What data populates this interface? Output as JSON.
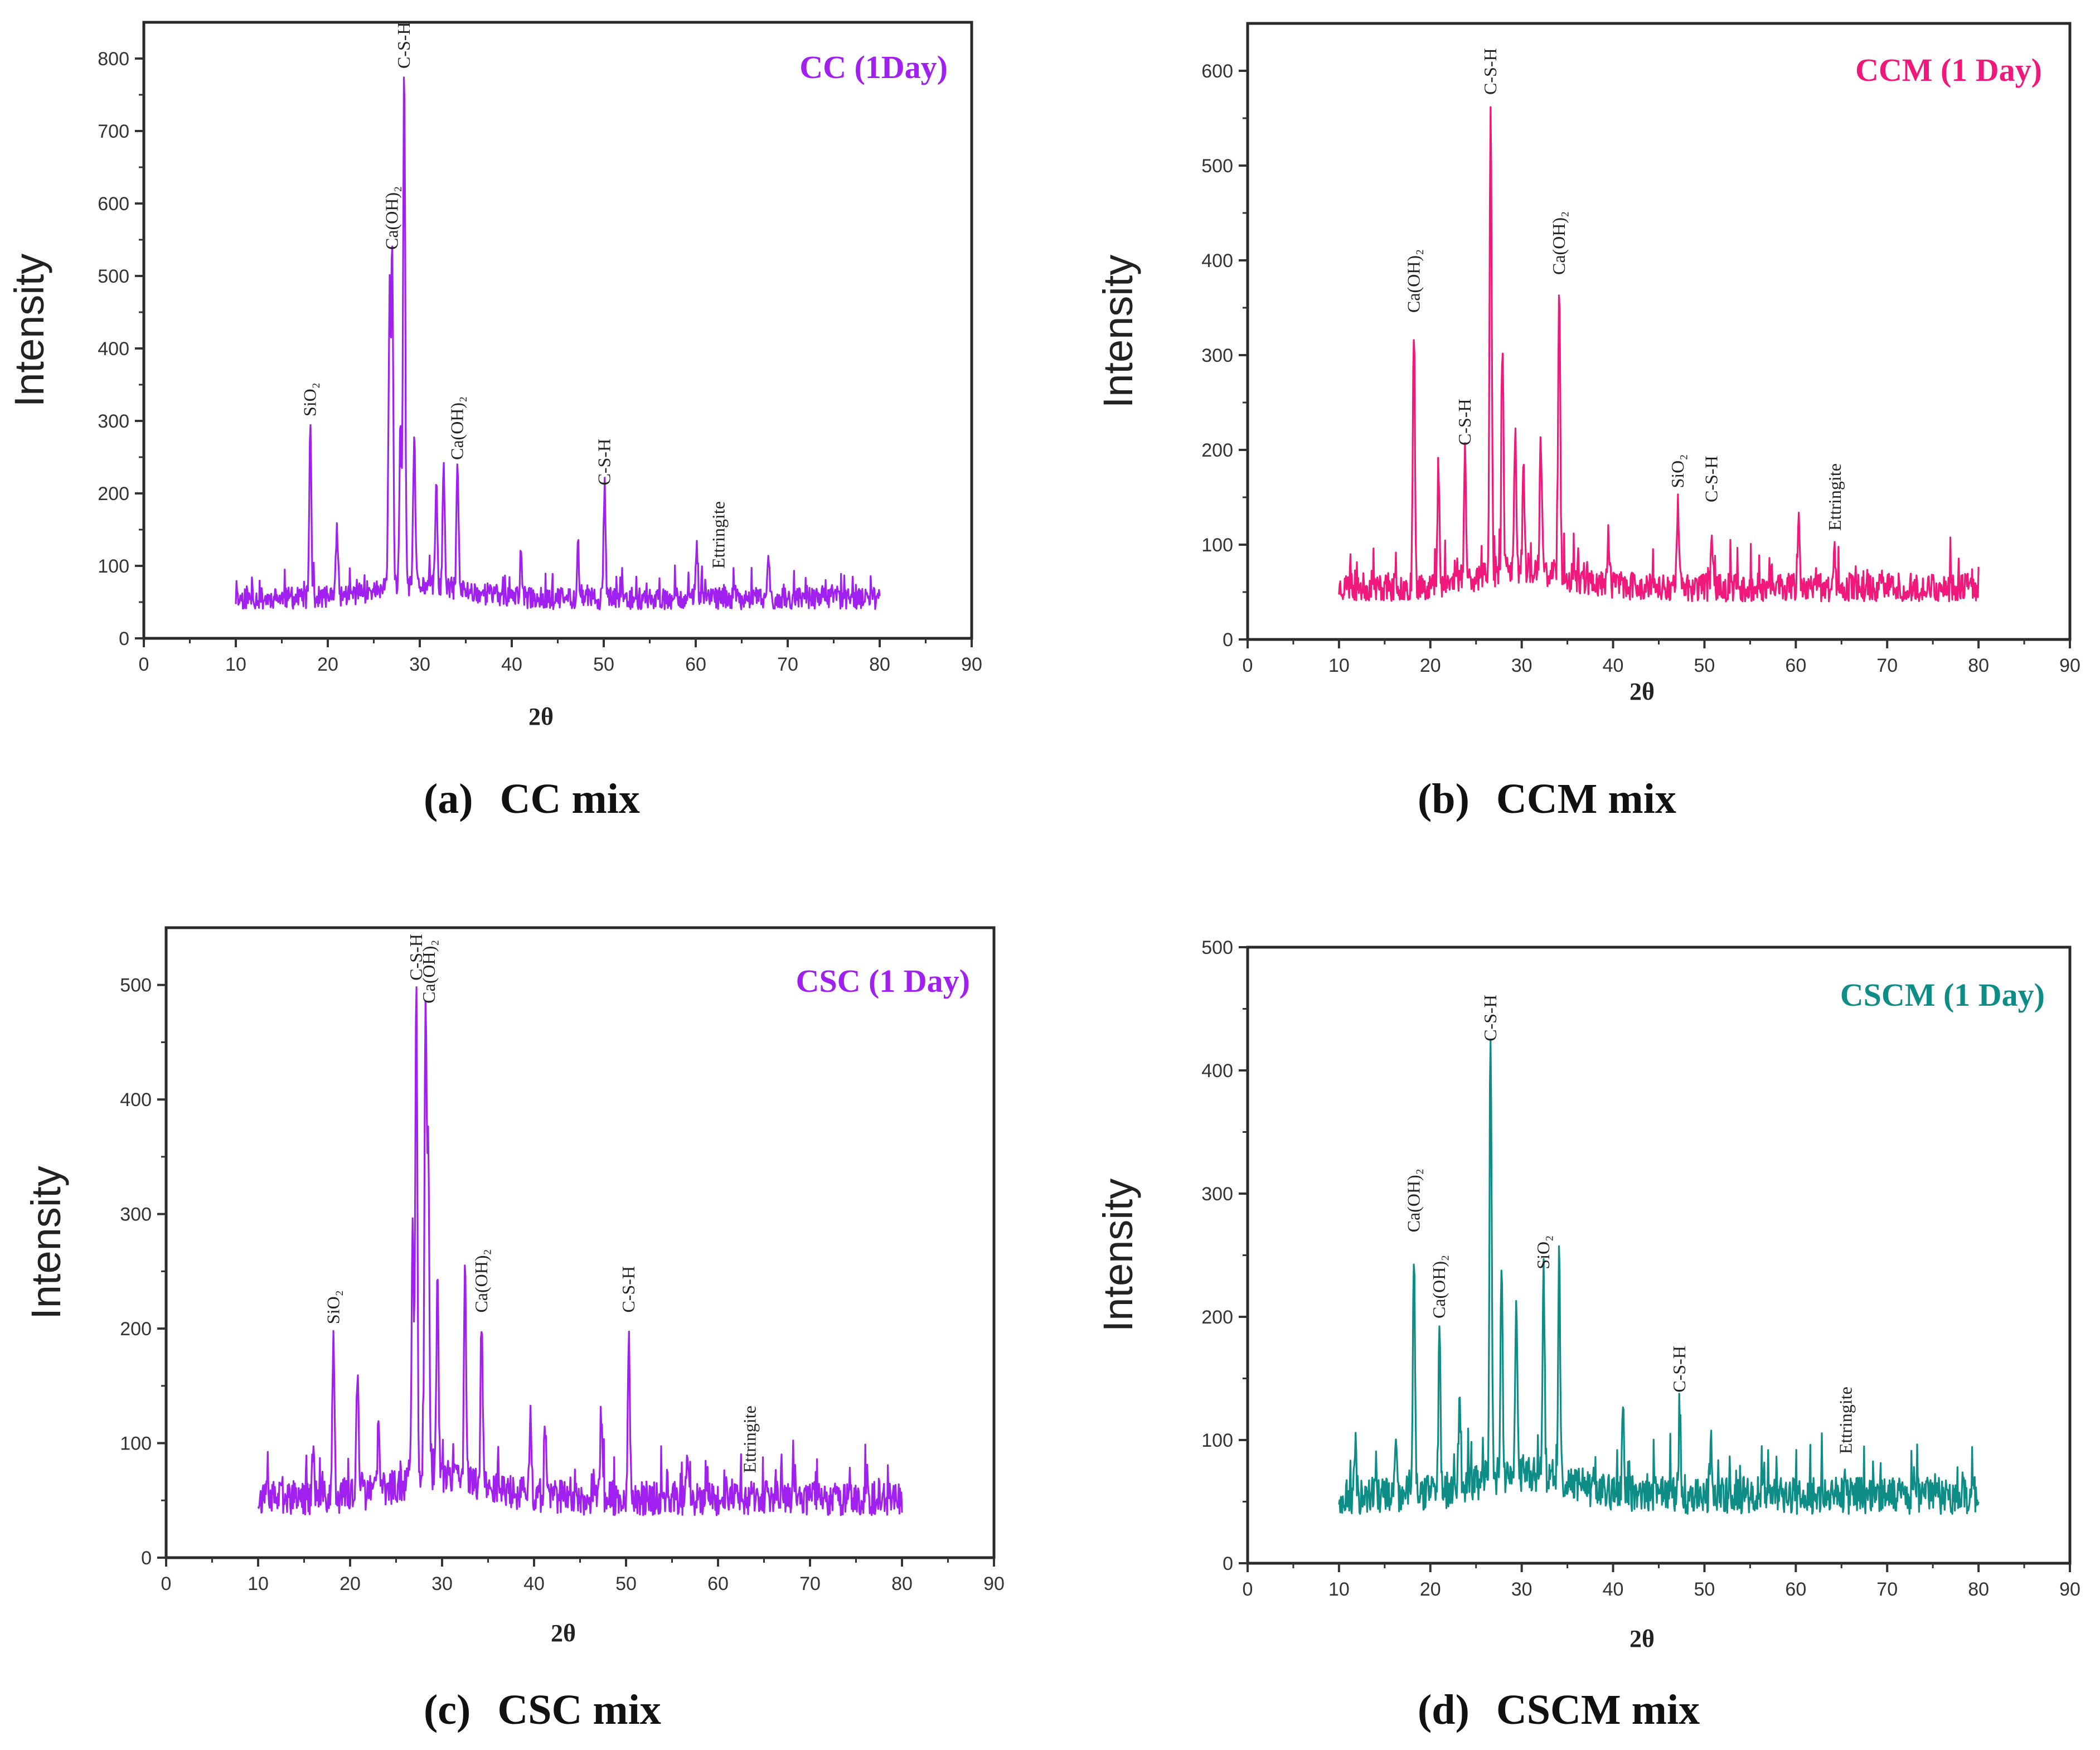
{
  "panels": [
    {
      "caption_letter": "(a)",
      "caption_text": "CC mix",
      "chart_data": {
        "type": "line",
        "title": "CC (1Day)",
        "xlabel": "2θ",
        "ylabel": "Intensity",
        "color": "#A020F0",
        "xlim": [
          0,
          90
        ],
        "ylim": [
          0,
          850
        ],
        "xticks": [
          0,
          10,
          20,
          30,
          40,
          50,
          60,
          70,
          80,
          90
        ],
        "yticks": [
          0,
          100,
          200,
          300,
          400,
          500,
          600,
          700,
          800
        ],
        "x_range": [
          10,
          80
        ],
        "baseline": 55,
        "seed": 11,
        "peaks": [
          {
            "x": 18.1,
            "y": 295
          },
          {
            "x": 21.0,
            "y": 150
          },
          {
            "x": 26.7,
            "y": 420
          },
          {
            "x": 27.0,
            "y": 520
          },
          {
            "x": 27.9,
            "y": 280
          },
          {
            "x": 28.3,
            "y": 770
          },
          {
            "x": 29.4,
            "y": 265
          },
          {
            "x": 31.8,
            "y": 190
          },
          {
            "x": 32.6,
            "y": 215
          },
          {
            "x": 34.1,
            "y": 230
          },
          {
            "x": 41.0,
            "y": 115
          },
          {
            "x": 47.2,
            "y": 130
          },
          {
            "x": 50.1,
            "y": 195
          },
          {
            "x": 60.1,
            "y": 105
          },
          {
            "x": 67.9,
            "y": 110
          }
        ],
        "annotations": [
          {
            "text": "SiO₂",
            "x": 18.1,
            "y": 300
          },
          {
            "text": "Ca(OH)₂",
            "x": 27.0,
            "y": 530
          },
          {
            "text": "C-S-H",
            "x": 28.3,
            "y": 780
          },
          {
            "text": "Ca(OH)₂",
            "x": 34.1,
            "y": 240
          },
          {
            "text": "C-S-H",
            "x": 50.1,
            "y": 205
          },
          {
            "text": "Ettringite",
            "x": 62.5,
            "y": 90
          }
        ]
      }
    },
    {
      "caption_letter": "(b)",
      "caption_text": "CCM mix",
      "chart_data": {
        "type": "line",
        "title": "CCM (1 Day)",
        "xlabel": "2θ",
        "ylabel": "Intensity",
        "color": "#F0187A",
        "xlim": [
          0,
          90
        ],
        "ylim": [
          0,
          650
        ],
        "xticks": [
          0,
          10,
          20,
          30,
          40,
          50,
          60,
          70,
          80,
          90
        ],
        "yticks": [
          0,
          100,
          200,
          300,
          400,
          500,
          600
        ],
        "x_range": [
          10,
          80
        ],
        "baseline": 55,
        "seed": 23,
        "peaks": [
          {
            "x": 18.2,
            "y": 330
          },
          {
            "x": 20.9,
            "y": 170
          },
          {
            "x": 23.8,
            "y": 190
          },
          {
            "x": 26.6,
            "y": 560
          },
          {
            "x": 27.9,
            "y": 295
          },
          {
            "x": 29.3,
            "y": 205
          },
          {
            "x": 30.2,
            "y": 155
          },
          {
            "x": 32.1,
            "y": 195
          },
          {
            "x": 34.1,
            "y": 370
          },
          {
            "x": 39.5,
            "y": 110
          },
          {
            "x": 47.1,
            "y": 145
          },
          {
            "x": 50.8,
            "y": 115
          },
          {
            "x": 60.3,
            "y": 115
          },
          {
            "x": 64.2,
            "y": 85
          }
        ],
        "annotations": [
          {
            "text": "Ca(OH)₂",
            "x": 18.2,
            "y": 340
          },
          {
            "text": "C-S-H",
            "x": 23.8,
            "y": 200
          },
          {
            "text": "C-S-H",
            "x": 26.6,
            "y": 570
          },
          {
            "text": "Ca(OH)₂",
            "x": 34.1,
            "y": 380
          },
          {
            "text": "SiO₂",
            "x": 47.1,
            "y": 155
          },
          {
            "text": "C-S-H",
            "x": 50.8,
            "y": 140
          },
          {
            "text": "Ettringite",
            "x": 64.3,
            "y": 110
          }
        ]
      }
    },
    {
      "caption_letter": "(c)",
      "caption_text": "CSC mix",
      "chart_data": {
        "type": "line",
        "title": "CSC (1 Day)",
        "xlabel": "2θ",
        "ylabel": "Intensity",
        "color": "#A020F0",
        "xlim": [
          0,
          90
        ],
        "ylim": [
          0,
          550
        ],
        "xticks": [
          0,
          10,
          20,
          30,
          40,
          50,
          60,
          70,
          80,
          90
        ],
        "yticks": [
          0,
          100,
          200,
          300,
          400,
          500
        ],
        "x_range": [
          10,
          80
        ],
        "baseline": 52,
        "seed": 37,
        "peaks": [
          {
            "x": 16.0,
            "y": 95
          },
          {
            "x": 18.2,
            "y": 190
          },
          {
            "x": 20.8,
            "y": 160
          },
          {
            "x": 23.1,
            "y": 110
          },
          {
            "x": 26.8,
            "y": 285
          },
          {
            "x": 27.2,
            "y": 490
          },
          {
            "x": 28.2,
            "y": 470
          },
          {
            "x": 28.5,
            "y": 350
          },
          {
            "x": 29.5,
            "y": 235
          },
          {
            "x": 32.5,
            "y": 235
          },
          {
            "x": 34.3,
            "y": 200
          },
          {
            "x": 39.6,
            "y": 120
          },
          {
            "x": 41.2,
            "y": 115
          },
          {
            "x": 47.3,
            "y": 125
          },
          {
            "x": 50.3,
            "y": 200
          },
          {
            "x": 56.7,
            "y": 95
          },
          {
            "x": 68.2,
            "y": 80
          },
          {
            "x": 76.2,
            "y": 70
          }
        ],
        "annotations": [
          {
            "text": "SiO₂",
            "x": 18.2,
            "y": 200
          },
          {
            "text": "C-S-H",
            "x": 27.2,
            "y": 500
          },
          {
            "text": "Ca(OH)₂",
            "x": 28.6,
            "y": 480
          },
          {
            "text": "Ca(OH)₂",
            "x": 34.3,
            "y": 210
          },
          {
            "text": "C-S-H",
            "x": 50.3,
            "y": 210
          },
          {
            "text": "Ettringite",
            "x": 63.5,
            "y": 70
          }
        ]
      }
    },
    {
      "caption_letter": "(d)",
      "caption_text": "CSCM mix",
      "chart_data": {
        "type": "line",
        "title": "CSCM (1 Day)",
        "xlabel": "2θ",
        "ylabel": "Intensity",
        "color": "#0E8C86",
        "xlim": [
          0,
          90
        ],
        "ylim": [
          0,
          500
        ],
        "xticks": [
          0,
          10,
          20,
          30,
          40,
          50,
          60,
          70,
          80,
          90
        ],
        "yticks": [
          0,
          100,
          200,
          300,
          400,
          500
        ],
        "x_range": [
          10,
          80
        ],
        "baseline": 55,
        "seed": 49,
        "peaks": [
          {
            "x": 11.8,
            "y": 95
          },
          {
            "x": 16.2,
            "y": 100
          },
          {
            "x": 18.2,
            "y": 255
          },
          {
            "x": 21.0,
            "y": 185
          },
          {
            "x": 23.2,
            "y": 130
          },
          {
            "x": 26.6,
            "y": 410
          },
          {
            "x": 27.8,
            "y": 230
          },
          {
            "x": 29.4,
            "y": 185
          },
          {
            "x": 32.4,
            "y": 225
          },
          {
            "x": 34.1,
            "y": 235
          },
          {
            "x": 41.1,
            "y": 130
          },
          {
            "x": 47.3,
            "y": 125
          },
          {
            "x": 50.7,
            "y": 100
          }
        ],
        "annotations": [
          {
            "text": "Ca(OH)₂",
            "x": 18.2,
            "y": 265
          },
          {
            "text": "Ca(OH)₂",
            "x": 21.0,
            "y": 195
          },
          {
            "text": "C-S-H",
            "x": 26.6,
            "y": 420
          },
          {
            "text": "SiO₂",
            "x": 32.4,
            "y": 235
          },
          {
            "text": "C-S-H",
            "x": 47.3,
            "y": 135
          },
          {
            "text": "Ettringite",
            "x": 65.5,
            "y": 85
          }
        ]
      }
    }
  ]
}
